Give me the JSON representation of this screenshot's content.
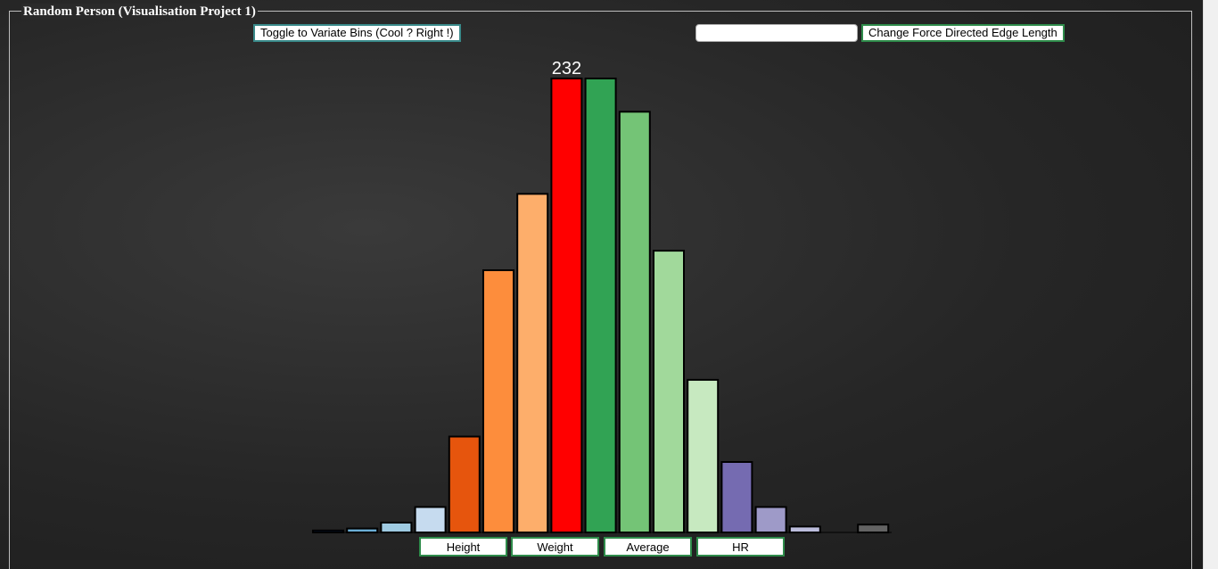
{
  "page": {
    "title": "Random Person (Visualisation Project 1)"
  },
  "toolbar": {
    "toggle_bins_label": "Toggle to Variate Bins (Cool ? Right !)",
    "edge_length_value": "",
    "edge_length_placeholder": "",
    "force_edge_label": "Change Force Directed Edge Length"
  },
  "variable_buttons": [
    "Height",
    "Weight",
    "Average",
    "HR"
  ],
  "chart_data": {
    "type": "bar",
    "title": "",
    "xlabel": "",
    "ylabel": "",
    "ylim": [
      0,
      232
    ],
    "highlighted_label": "232",
    "bars": [
      {
        "value": 1,
        "color": "#08306b"
      },
      {
        "value": 2,
        "color": "#6baed6"
      },
      {
        "value": 5,
        "color": "#9ecae1"
      },
      {
        "value": 13,
        "color": "#c6dbef"
      },
      {
        "value": 49,
        "color": "#e6550d"
      },
      {
        "value": 134,
        "color": "#fd8d3c"
      },
      {
        "value": 173,
        "color": "#fdae6b"
      },
      {
        "value": 232,
        "color": "#ff0000"
      },
      {
        "value": 232,
        "color": "#31a354"
      },
      {
        "value": 215,
        "color": "#74c476"
      },
      {
        "value": 144,
        "color": "#a1d99b"
      },
      {
        "value": 78,
        "color": "#c7e9c0"
      },
      {
        "value": 36,
        "color": "#756bb1"
      },
      {
        "value": 13,
        "color": "#9e9ac8"
      },
      {
        "value": 3,
        "color": "#bcbddc"
      },
      {
        "value": 0,
        "color": "#dadaeb"
      },
      {
        "value": 4,
        "color": "#636363"
      }
    ]
  }
}
